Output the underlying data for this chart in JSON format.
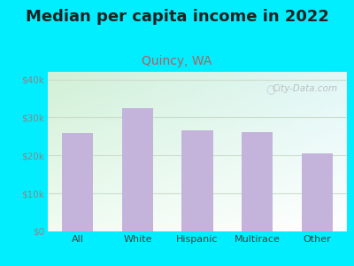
{
  "title": "Median per capita income in 2022",
  "subtitle": "Quincy, WA",
  "categories": [
    "All",
    "White",
    "Hispanic",
    "Multirace",
    "Other"
  ],
  "values": [
    26000,
    32500,
    26500,
    26200,
    20500
  ],
  "bar_color": "#c4b4dc",
  "title_fontsize": 13,
  "subtitle_fontsize": 10,
  "subtitle_color": "#b06060",
  "title_color": "#222222",
  "tick_color": "#888888",
  "xlabel_color": "#444444",
  "ylim": [
    0,
    42000
  ],
  "yticks": [
    0,
    10000,
    20000,
    30000,
    40000
  ],
  "ytick_labels": [
    "$0",
    "$10k",
    "$20k",
    "$30k",
    "$40k"
  ],
  "background_outer": "#00eeff",
  "background_plot_topleft": "#d8efd8",
  "background_plot_bottomright": "#e8f8f8",
  "background_white": "#f5ffff",
  "watermark": "City-Data.com",
  "grid_color": "#ccddcc"
}
